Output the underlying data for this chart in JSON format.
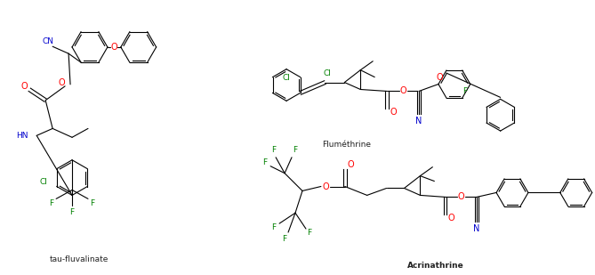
{
  "labels": {
    "tau_fluvalinate": "tau-fluvalinate",
    "flumethrine": "Fluméthrine",
    "acrinathrine": "Acrinathrine"
  },
  "colors": {
    "bond": "#000000",
    "oxygen": "#ff0000",
    "nitrogen": "#0000cd",
    "chlorine": "#008000",
    "fluorine": "#008000",
    "background": "#ffffff"
  },
  "figsize": [
    6.69,
    3.09
  ],
  "dpi": 100
}
